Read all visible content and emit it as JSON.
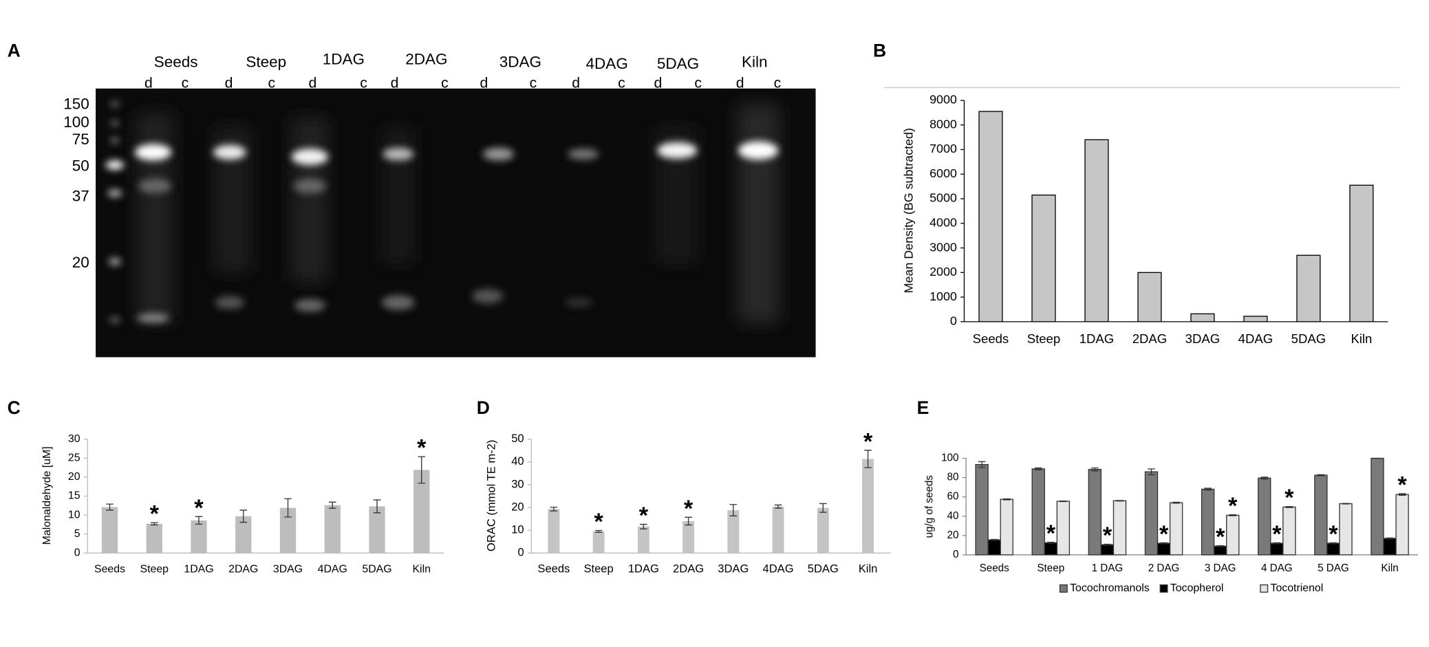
{
  "gel": {
    "panel": "A",
    "lanes": [
      "Seeds",
      "Steep",
      "1DAG",
      "2DAG",
      "3DAG",
      "4DAG",
      "5DAG",
      "Kiln"
    ],
    "sublanes": [
      "d",
      "c",
      "d",
      "c",
      "d",
      "c",
      "d",
      "c",
      "d",
      "c",
      "d",
      "c",
      "d",
      "c",
      "d",
      "c"
    ],
    "markers": [
      "150",
      "100",
      "75",
      "50",
      "37",
      "20"
    ]
  },
  "chart_data": [
    {
      "type": "bar",
      "panel": "B",
      "ylabel": "Mean Density (BG subtracted)",
      "categories": [
        "Seeds",
        "Steep",
        "1DAG",
        "2DAG",
        "3DAG",
        "4DAG",
        "5DAG",
        "Kiln"
      ],
      "values": [
        8550,
        5150,
        7400,
        2000,
        320,
        220,
        2700,
        5550
      ],
      "color": "#c6c6c6",
      "edgecolor": "#000000",
      "ylim": [
        0,
        9000
      ],
      "yticks": [
        0,
        1000,
        2000,
        3000,
        4000,
        5000,
        6000,
        7000,
        8000,
        9000
      ],
      "grid": false
    },
    {
      "type": "bar",
      "panel": "C",
      "ylabel": "Malonaldehyde [uM]",
      "categories": [
        "Seeds",
        "Steep",
        "1DAG",
        "2DAG",
        "3DAG",
        "4DAG",
        "5DAG",
        "Kiln"
      ],
      "values": [
        12.1,
        7.7,
        8.6,
        9.7,
        11.9,
        12.6,
        12.3,
        21.9
      ],
      "errors": [
        0.8,
        0.3,
        1.0,
        1.6,
        2.4,
        0.8,
        1.7,
        3.5
      ],
      "significance": [
        null,
        "*",
        "*",
        null,
        null,
        null,
        null,
        "*"
      ],
      "color": "#bdbdbd",
      "ylim": [
        0,
        30
      ],
      "yticks": [
        0,
        5,
        10,
        15,
        20,
        25,
        30
      ],
      "grid": false
    },
    {
      "type": "bar",
      "panel": "D",
      "ylabel": "ORAC (mmol TE m-2)",
      "categories": [
        "Seeds",
        "Steep",
        "1DAG",
        "2DAG",
        "3DAG",
        "4DAG",
        "5DAG",
        "Kiln"
      ],
      "values": [
        19.3,
        9.5,
        11.6,
        14.0,
        18.8,
        20.4,
        19.8,
        41.3
      ],
      "errors": [
        0.8,
        0.4,
        1.0,
        1.7,
        2.5,
        0.7,
        1.9,
        3.8
      ],
      "significance": [
        null,
        "*",
        "*",
        "*",
        null,
        null,
        null,
        "*"
      ],
      "color": "#c4c4c4",
      "ylim": [
        0,
        50
      ],
      "yticks": [
        0,
        10,
        20,
        30,
        40,
        50
      ],
      "grid": false
    },
    {
      "type": "grouped-bar",
      "panel": "E",
      "ylabel": "ug/g of seeds",
      "categories": [
        "Seeds",
        "Steep",
        "1 DAG",
        "2 DAG",
        "3 DAG",
        "4 DAG",
        "5 DAG",
        "Kiln"
      ],
      "series": [
        {
          "name": "Tocochromanols",
          "color": "#7a7a7a",
          "values": [
            93.5,
            89,
            88.5,
            86,
            68,
            79.5,
            82.5,
            100
          ],
          "errors": [
            3,
            1,
            1.5,
            3,
            1,
            1,
            0.5,
            0
          ],
          "significance": [
            null,
            null,
            null,
            null,
            null,
            null,
            null,
            null
          ]
        },
        {
          "name": "Tocopherol",
          "color": "#000000",
          "values": [
            15.5,
            12.5,
            10.5,
            12,
            9,
            12,
            12,
            17
          ],
          "errors": [
            0.5,
            0.5,
            0.5,
            0.5,
            0.5,
            0.5,
            0.5,
            0.5
          ],
          "significance": [
            null,
            "*",
            "*",
            "*",
            "*",
            "*",
            "*",
            null
          ]
        },
        {
          "name": "Tocotrienol",
          "color": "#e6e6e6",
          "values": [
            57.5,
            55.5,
            56,
            54,
            41,
            49.5,
            53,
            62.5
          ],
          "errors": [
            0.5,
            0.3,
            0.3,
            0.5,
            0.5,
            0.5,
            0.3,
            0.8
          ],
          "significance": [
            null,
            null,
            null,
            null,
            "*",
            "*",
            null,
            "*"
          ]
        }
      ],
      "edgecolor": "#333333",
      "legend": "bottom",
      "ylim": [
        0,
        100
      ],
      "yticks": [
        0,
        20,
        40,
        60,
        80,
        100
      ],
      "grid": false
    }
  ]
}
